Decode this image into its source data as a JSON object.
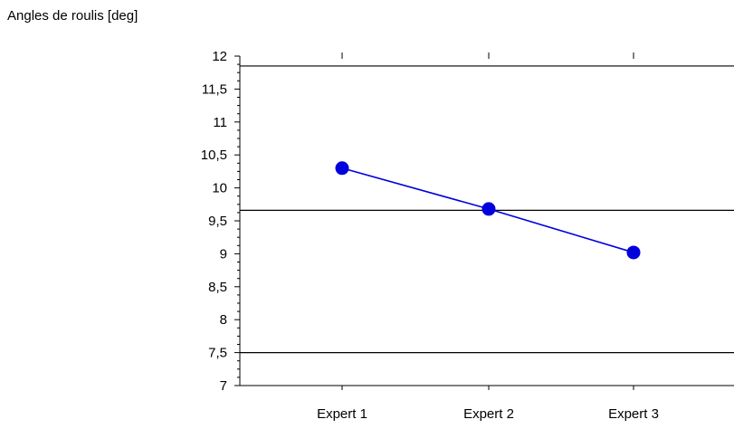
{
  "colors": {
    "series": "#0000dd",
    "axis": "#000000",
    "reference_lines": "#000000"
  },
  "chart_data": {
    "type": "line",
    "title": "Angles de roulis [deg]",
    "xlabel": "",
    "ylabel": "",
    "categories": [
      "Expert 1",
      "Expert 2",
      "Expert 3"
    ],
    "series": [
      {
        "values": [
          10.3,
          9.68,
          9.02
        ]
      }
    ],
    "ylim": [
      7,
      12
    ],
    "y_ticks": [
      {
        "value": 7,
        "label": "7"
      },
      {
        "value": 7.5,
        "label": "7,5"
      },
      {
        "value": 8,
        "label": "8"
      },
      {
        "value": 8.5,
        "label": "8,5"
      },
      {
        "value": 9,
        "label": "9"
      },
      {
        "value": 9.5,
        "label": "9,5"
      },
      {
        "value": 10,
        "label": "10"
      },
      {
        "value": 10.5,
        "label": "10,5"
      },
      {
        "value": 11,
        "label": "11"
      },
      {
        "value": 11.5,
        "label": "11,5"
      },
      {
        "value": 12,
        "label": "12"
      }
    ],
    "reference_lines": [
      11.85,
      9.66,
      7.5
    ],
    "grid": false,
    "legend": "none"
  }
}
